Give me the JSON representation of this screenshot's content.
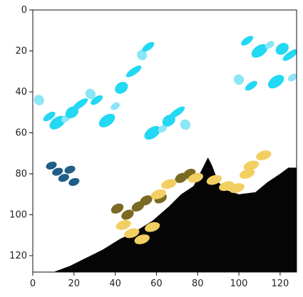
{
  "chart_data": {
    "type": "heatmap",
    "title": "",
    "xlabel": "",
    "ylabel": "",
    "xlim": [
      0,
      128
    ],
    "ylim": [
      128,
      0
    ],
    "x_ticks": [
      0,
      20,
      40,
      60,
      80,
      100,
      120
    ],
    "y_ticks": [
      0,
      20,
      40,
      60,
      80,
      100,
      120
    ],
    "x_tick_labels": [
      "0",
      "20",
      "40",
      "60",
      "80",
      "100",
      "120"
    ],
    "y_tick_labels": [
      "0",
      "20",
      "40",
      "60",
      "80",
      "100",
      "120"
    ],
    "grid": false,
    "colors": {
      "background": "#ffffff",
      "cyan": "#22d8f2",
      "light_cyan": "#8be6f6",
      "dark_blue": "#1f5e86",
      "yellow": "#f2cf62",
      "olive": "#7a6a22",
      "dark": "#050505"
    },
    "regions": {
      "dark_land_profile": [
        [
          10,
          128
        ],
        [
          18,
          125
        ],
        [
          26,
          121
        ],
        [
          34,
          117
        ],
        [
          42,
          112
        ],
        [
          50,
          108
        ],
        [
          58,
          103
        ],
        [
          66,
          96
        ],
        [
          72,
          90
        ],
        [
          78,
          86
        ],
        [
          82,
          78
        ],
        [
          85,
          72
        ],
        [
          87,
          76
        ],
        [
          90,
          84
        ],
        [
          94,
          88
        ],
        [
          100,
          90
        ],
        [
          108,
          89
        ],
        [
          114,
          84
        ],
        [
          120,
          80
        ],
        [
          124,
          77
        ],
        [
          128,
          77
        ],
        [
          128,
          128
        ]
      ],
      "cyan_patches": [
        [
          3,
          44
        ],
        [
          8,
          52
        ],
        [
          12,
          55
        ],
        [
          16,
          53
        ],
        [
          19,
          50
        ],
        [
          23,
          46
        ],
        [
          28,
          41
        ],
        [
          31,
          44
        ],
        [
          36,
          54
        ],
        [
          40,
          47
        ],
        [
          43,
          38
        ],
        [
          49,
          30
        ],
        [
          53,
          22
        ],
        [
          56,
          18
        ],
        [
          58,
          60
        ],
        [
          63,
          58
        ],
        [
          66,
          54
        ],
        [
          70,
          50
        ],
        [
          74,
          56
        ],
        [
          104,
          15
        ],
        [
          110,
          20
        ],
        [
          115,
          17
        ],
        [
          121,
          19
        ],
        [
          125,
          22
        ],
        [
          100,
          34
        ],
        [
          106,
          37
        ],
        [
          118,
          35
        ],
        [
          126,
          33
        ]
      ],
      "dark_blue_patches": [
        [
          9,
          76
        ],
        [
          12,
          79
        ],
        [
          15,
          82
        ],
        [
          18,
          78
        ],
        [
          20,
          84
        ]
      ],
      "yellow_patches": [
        [
          44,
          105
        ],
        [
          48,
          109
        ],
        [
          53,
          112
        ],
        [
          58,
          106
        ],
        [
          61,
          90
        ],
        [
          66,
          85
        ],
        [
          79,
          82
        ],
        [
          88,
          83
        ],
        [
          94,
          86
        ],
        [
          99,
          87
        ],
        [
          104,
          80
        ],
        [
          106,
          76
        ],
        [
          112,
          71
        ]
      ],
      "olive_patches": [
        [
          41,
          97
        ],
        [
          46,
          100
        ],
        [
          51,
          96
        ],
        [
          55,
          93
        ],
        [
          62,
          92
        ],
        [
          72,
          82
        ],
        [
          76,
          80
        ]
      ]
    }
  }
}
